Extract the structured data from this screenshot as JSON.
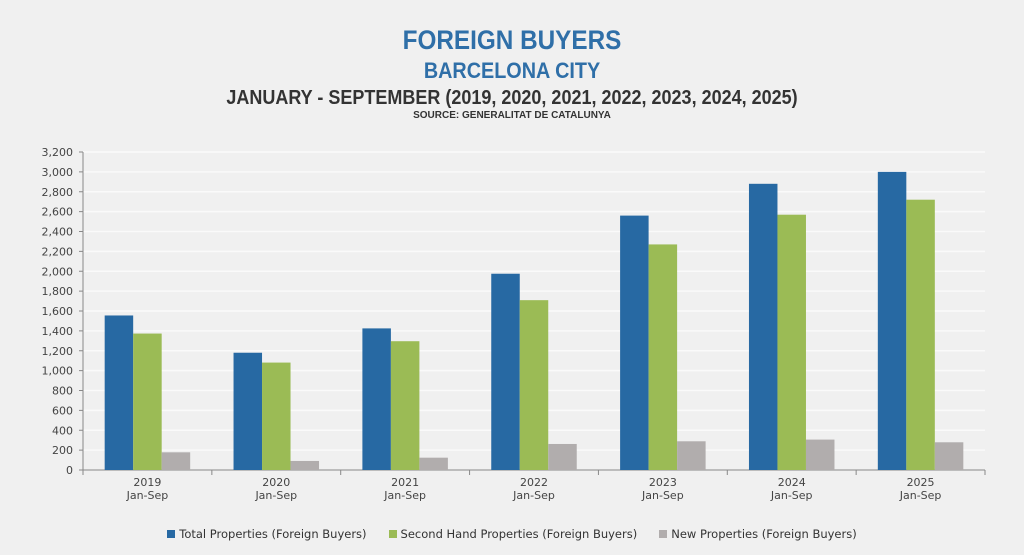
{
  "title": "FOREIGN BUYERS",
  "subtitle": "BARCELONA CITY",
  "period": "JANUARY - SEPTEMBER (2019, 2020, 2021, 2022, 2023, 2024, 2025)",
  "source": "SOURCE: GENERALITAT DE CATALUNYA",
  "chart_data": {
    "type": "bar",
    "title": "FOREIGN BUYERS",
    "xlabel": "",
    "ylabel": "",
    "categories": [
      [
        "2019",
        "Jan-Sep"
      ],
      [
        "2020",
        "Jan-Sep"
      ],
      [
        "2021",
        "Jan-Sep"
      ],
      [
        "2022",
        "Jan-Sep"
      ],
      [
        "2023",
        "Jan-Sep"
      ],
      [
        "2024",
        "Jan-Sep"
      ],
      [
        "2025",
        "Jan-Sep"
      ]
    ],
    "ylim": [
      0,
      3200
    ],
    "yticks": [
      0,
      200,
      400,
      600,
      800,
      1000,
      1200,
      1400,
      1600,
      1800,
      2000,
      2200,
      2400,
      2600,
      2800,
      3000,
      3200
    ],
    "ytick_labels": [
      "0",
      "200",
      "400",
      "600",
      "800",
      "1,000",
      "1,200",
      "1,400",
      "1,600",
      "1,800",
      "2,000",
      "2,200",
      "2,400",
      "2,600",
      "2,800",
      "3,000",
      "3,200"
    ],
    "grid": true,
    "legend_position": "bottom",
    "series": [
      {
        "name": "Total Properties (Foreign Buyers)",
        "color": "#2769a3",
        "values": [
          1555,
          1180,
          1425,
          1975,
          2560,
          2880,
          3000
        ]
      },
      {
        "name": "Second Hand Properties (Foreign Buyers)",
        "color": "#9bbb55",
        "values": [
          1373,
          1081,
          1296,
          1709,
          2270,
          2569,
          2720
        ]
      },
      {
        "name": "New Properties (Foreign Buyers)",
        "color": "#b1adad",
        "values": [
          178,
          91,
          124,
          262,
          289,
          306,
          279
        ]
      }
    ]
  }
}
